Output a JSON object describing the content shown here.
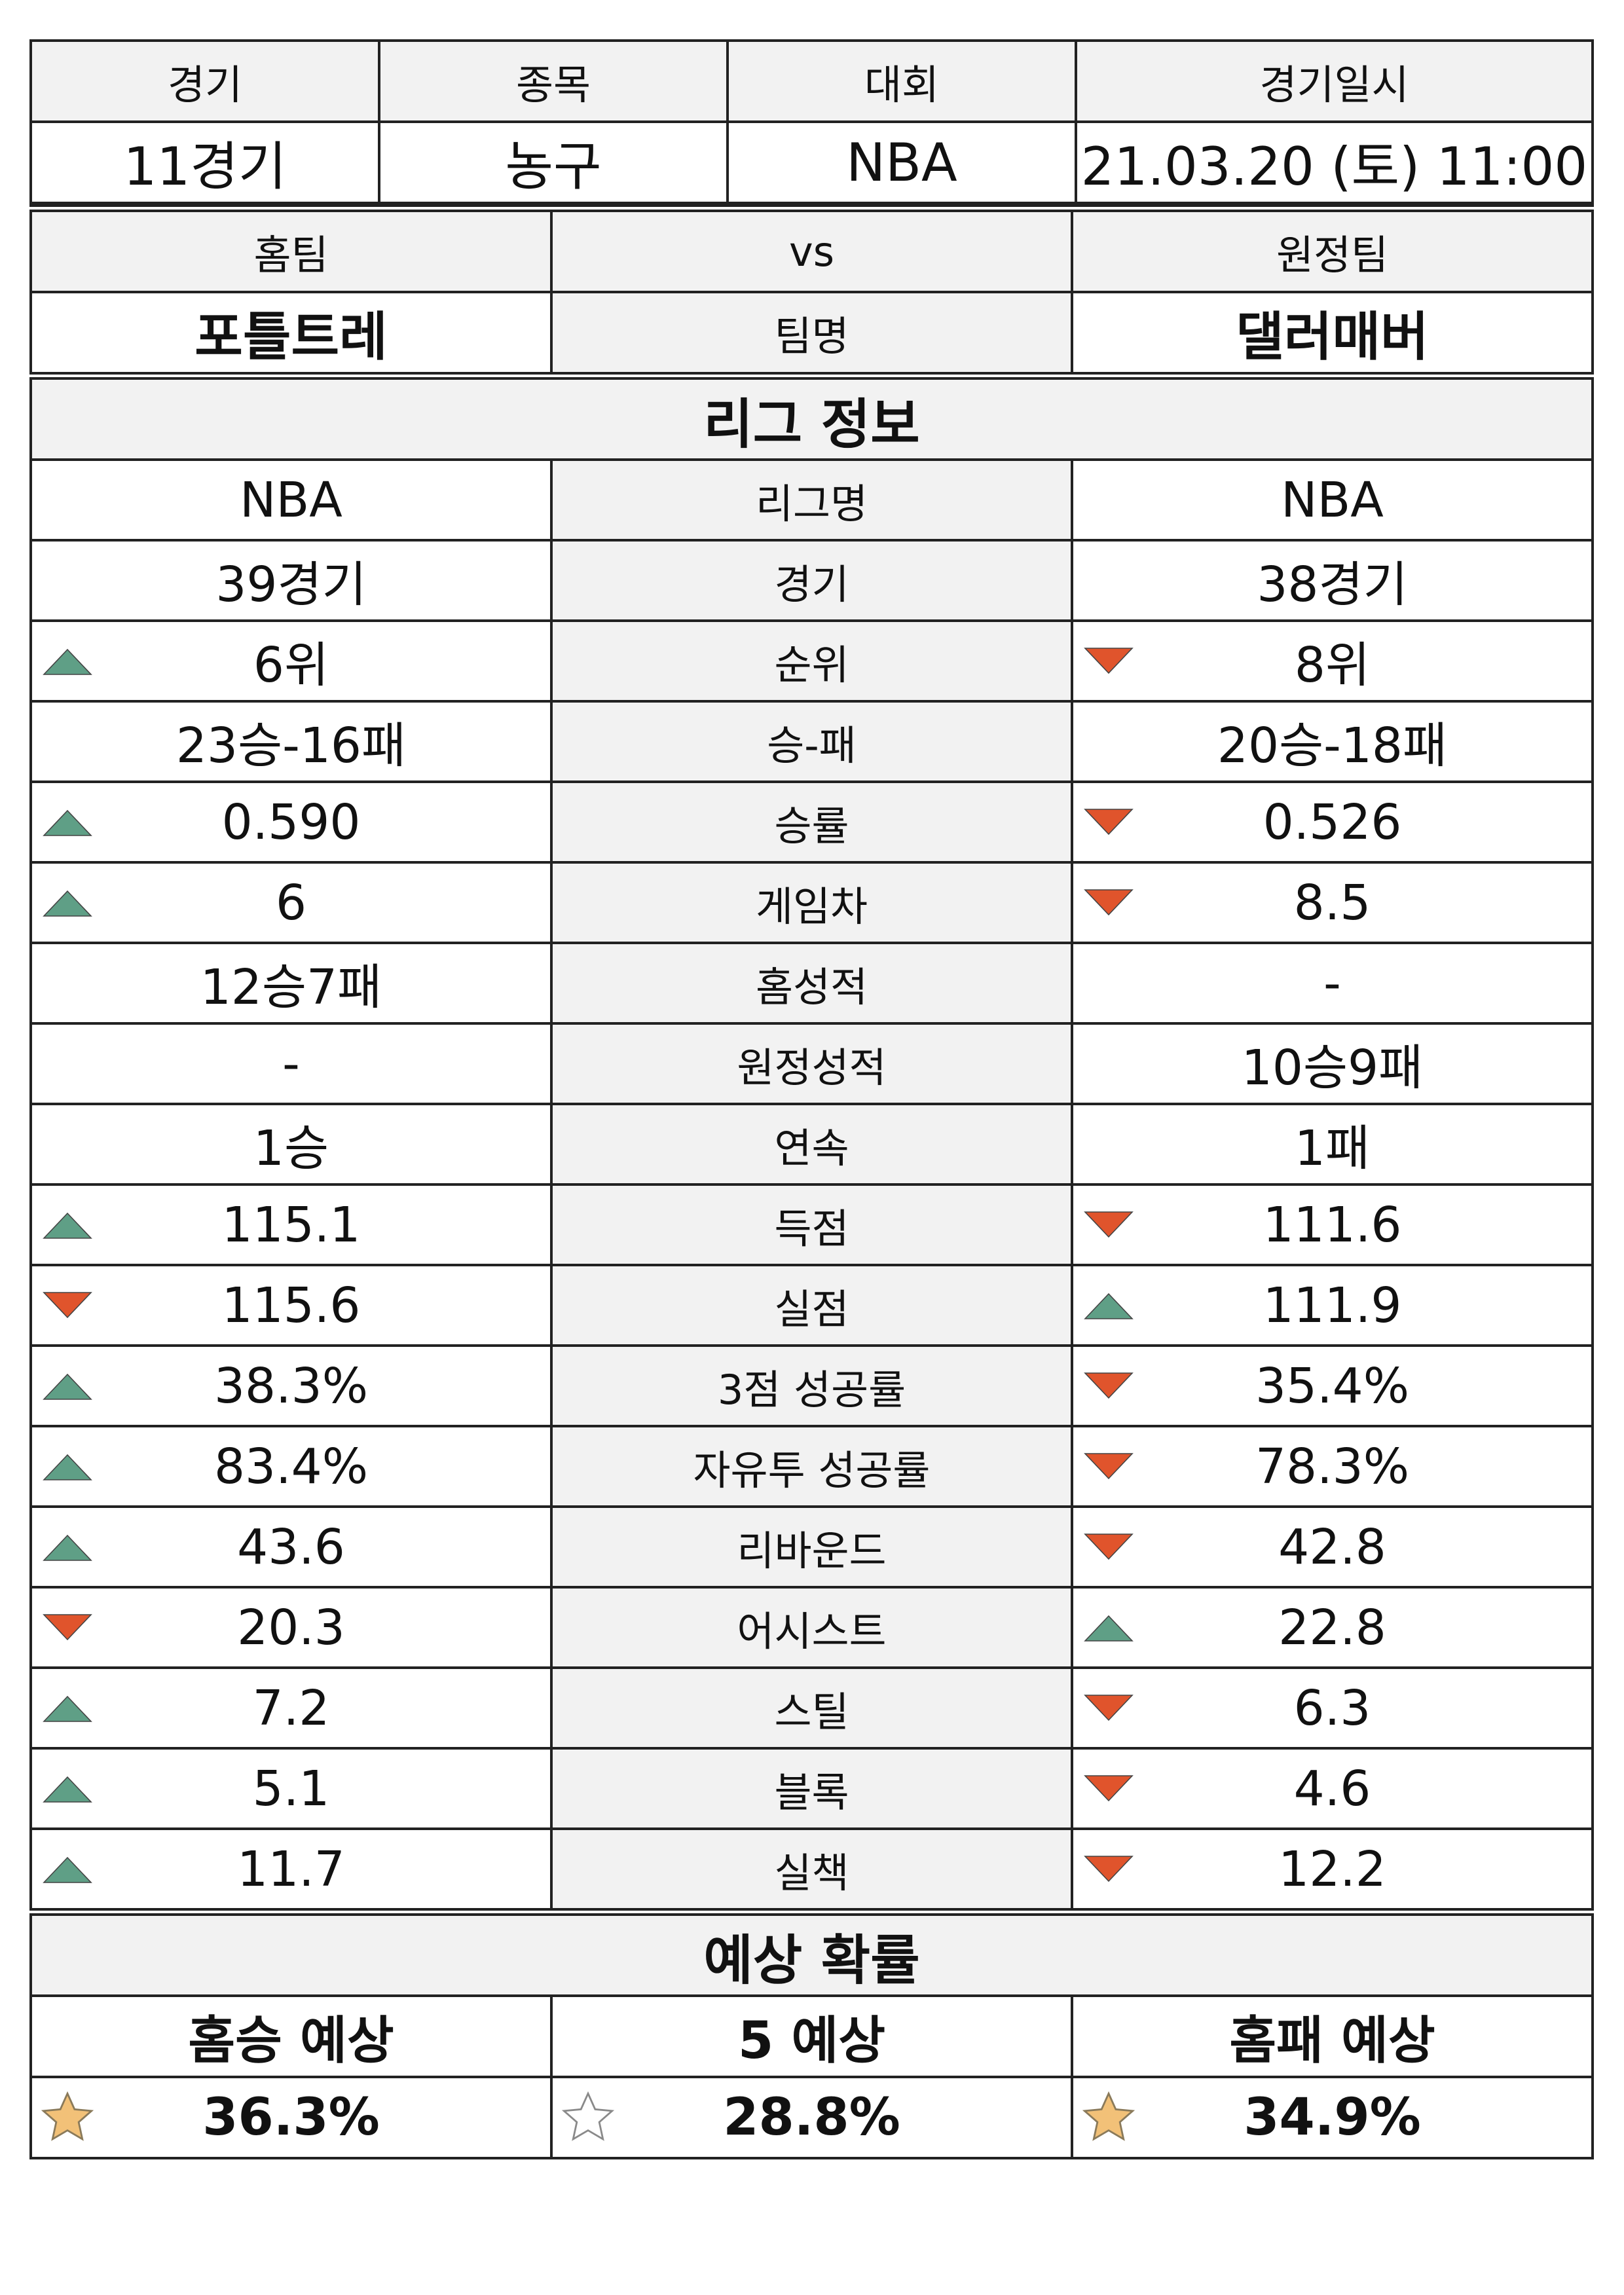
{
  "match_info": {
    "headers": [
      "경기",
      "종목",
      "대회",
      "경기일시"
    ],
    "values": [
      "11경기",
      "농구",
      "NBA",
      "21.03.20 (토) 11:00"
    ]
  },
  "teams": {
    "home_label": "홈팀",
    "vs_label": "vs",
    "away_label": "원정팀",
    "home_name": "포틀트레",
    "name_label": "팀명",
    "away_name": "댈러매버"
  },
  "league_section_title": "리그 정보",
  "stats": [
    {
      "home": "NBA",
      "label": "리그명",
      "away": "NBA",
      "home_ind": "none",
      "away_ind": "none"
    },
    {
      "home": "39경기",
      "label": "경기",
      "away": "38경기",
      "home_ind": "none",
      "away_ind": "none"
    },
    {
      "home": "6위",
      "label": "순위",
      "away": "8위",
      "home_ind": "up",
      "away_ind": "down"
    },
    {
      "home": "23승-16패",
      "label": "승-패",
      "away": "20승-18패",
      "home_ind": "none",
      "away_ind": "none"
    },
    {
      "home": "0.590",
      "label": "승률",
      "away": "0.526",
      "home_ind": "up",
      "away_ind": "down"
    },
    {
      "home": "6",
      "label": "게임차",
      "away": "8.5",
      "home_ind": "up",
      "away_ind": "down"
    },
    {
      "home": "12승7패",
      "label": "홈성적",
      "away": "-",
      "home_ind": "none",
      "away_ind": "none"
    },
    {
      "home": "-",
      "label": "원정성적",
      "away": "10승9패",
      "home_ind": "none",
      "away_ind": "none"
    },
    {
      "home": "1승",
      "label": "연속",
      "away": "1패",
      "home_ind": "none",
      "away_ind": "none"
    },
    {
      "home": "115.1",
      "label": "득점",
      "away": "111.6",
      "home_ind": "up",
      "away_ind": "down"
    },
    {
      "home": "115.6",
      "label": "실점",
      "away": "111.9",
      "home_ind": "down",
      "away_ind": "up"
    },
    {
      "home": "38.3%",
      "label": "3점 성공률",
      "away": "35.4%",
      "home_ind": "up",
      "away_ind": "down"
    },
    {
      "home": "83.4%",
      "label": "자유투 성공률",
      "away": "78.3%",
      "home_ind": "up",
      "away_ind": "down"
    },
    {
      "home": "43.6",
      "label": "리바운드",
      "away": "42.8",
      "home_ind": "up",
      "away_ind": "down"
    },
    {
      "home": "20.3",
      "label": "어시스트",
      "away": "22.8",
      "home_ind": "down",
      "away_ind": "up"
    },
    {
      "home": "7.2",
      "label": "스틸",
      "away": "6.3",
      "home_ind": "up",
      "away_ind": "down"
    },
    {
      "home": "5.1",
      "label": "블록",
      "away": "4.6",
      "home_ind": "up",
      "away_ind": "down"
    },
    {
      "home": "11.7",
      "label": "실책",
      "away": "12.2",
      "home_ind": "up",
      "away_ind": "down"
    }
  ],
  "prediction": {
    "title": "예상 확률",
    "headers": [
      "홈승 예상",
      "5 예상",
      "홈패 예상"
    ],
    "values": [
      "36.3%",
      "28.8%",
      "34.9%"
    ],
    "stars": [
      "filled",
      "empty",
      "filled"
    ]
  },
  "colors": {
    "up": "#5f9f86",
    "down": "#e0542c",
    "star_fill": "#f2c178",
    "header_bg": "#f2f2f2"
  }
}
